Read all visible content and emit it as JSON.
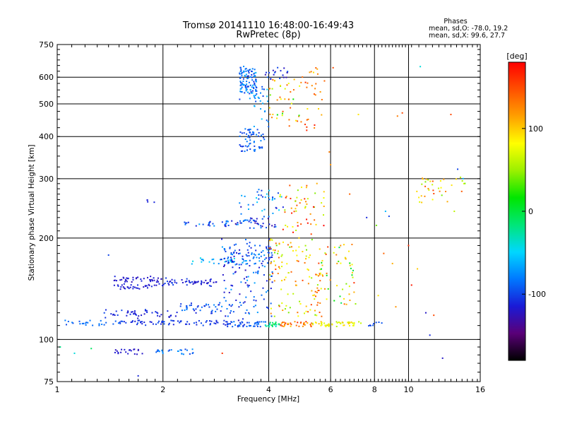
{
  "chart_data": {
    "type": "scatter",
    "title": "Tromsø 20141110 16:48:00-16:49:43",
    "subtitle": "RwPretec (8p)",
    "xlabel": "Frequency [MHz]",
    "ylabel": "Stationary phase Virtual Height [km]",
    "x_scale": "log",
    "y_scale": "log",
    "xlim": [
      1,
      16
    ],
    "ylim": [
      75,
      750
    ],
    "x_ticks": [
      1,
      2,
      4,
      6,
      8,
      10,
      16
    ],
    "y_ticks": [
      75,
      100,
      200,
      300,
      400,
      500,
      600,
      750
    ],
    "grid": true,
    "phase_stats": {
      "heading": "Phases",
      "o_mode": "mean, sd,O: -78.0, 19.2",
      "x_mode": "mean, sd,X:  99.6, 27.7"
    },
    "colorbar": {
      "label": "[deg]",
      "range": [
        -180,
        180
      ],
      "ticks": [
        -100,
        0,
        100
      ],
      "colors": [
        "#000000",
        "#5a0078",
        "#1a1ad6",
        "#0078ff",
        "#00d7ff",
        "#00e678",
        "#00e600",
        "#9bf000",
        "#ffff00",
        "#ffa000",
        "#ff5000",
        "#ff0000"
      ]
    },
    "traces": [
      {
        "x0": 1.05,
        "x1": 1.55,
        "y0": 112,
        "y1": 112,
        "n": 25,
        "phase": -90,
        "spread": 10
      },
      {
        "x0": 1.5,
        "x1": 3.1,
        "y0": 112,
        "y1": 112,
        "n": 70,
        "phase": -105,
        "spread": 10
      },
      {
        "x0": 3.0,
        "x1": 3.9,
        "y0": 111,
        "y1": 111,
        "n": 45,
        "phase": -95,
        "spread": 15
      },
      {
        "x0": 3.9,
        "x1": 4.3,
        "y0": 111,
        "y1": 111,
        "n": 20,
        "phase": -20,
        "spread": 25
      },
      {
        "x0": 4.3,
        "x1": 5.3,
        "y0": 111,
        "y1": 111,
        "n": 35,
        "phase": 130,
        "spread": 35
      },
      {
        "x0": 5.3,
        "x1": 7.4,
        "y0": 111,
        "y1": 111,
        "n": 45,
        "phase": 80,
        "spread": 25
      },
      {
        "x0": 7.7,
        "x1": 8.4,
        "y0": 111,
        "y1": 111,
        "n": 8,
        "phase": -100,
        "spread": 10
      },
      {
        "x0": 1.35,
        "x1": 2.2,
        "y0": 117,
        "y1": 121,
        "n": 45,
        "phase": -110,
        "spread": 12
      },
      {
        "x0": 2.2,
        "x1": 3.2,
        "y0": 121,
        "y1": 127,
        "n": 45,
        "phase": -95,
        "spread": 20
      },
      {
        "x0": 1.45,
        "x1": 2.0,
        "y0": 150,
        "y1": 152,
        "n": 40,
        "phase": -118,
        "spread": 8
      },
      {
        "x0": 1.45,
        "x1": 2.0,
        "y0": 143,
        "y1": 144,
        "n": 35,
        "phase": -115,
        "spread": 8
      },
      {
        "x0": 2.0,
        "x1": 2.9,
        "y0": 146,
        "y1": 150,
        "n": 50,
        "phase": -112,
        "spread": 12
      },
      {
        "x0": 2.3,
        "x1": 3.5,
        "y0": 170,
        "y1": 172,
        "n": 30,
        "phase": -60,
        "spread": 20
      },
      {
        "x0": 3.1,
        "x1": 4.1,
        "y0": 165,
        "y1": 185,
        "n": 40,
        "phase": -95,
        "spread": 25
      },
      {
        "x0": 2.9,
        "x1": 4.1,
        "y0": 113,
        "y1": 198,
        "n": 140,
        "phase": -95,
        "spread": 30
      },
      {
        "x0": 4.0,
        "x1": 5.7,
        "y0": 118,
        "y1": 198,
        "n": 120,
        "phase": 95,
        "spread": 60
      },
      {
        "x0": 5.5,
        "x1": 7.1,
        "y0": 125,
        "y1": 190,
        "n": 55,
        "phase": 70,
        "spread": 90
      },
      {
        "x0": 2.3,
        "x1": 3.3,
        "y0": 222,
        "y1": 220,
        "n": 30,
        "phase": -90,
        "spread": 25
      },
      {
        "x0": 3.2,
        "x1": 4.2,
        "y0": 215,
        "y1": 230,
        "n": 40,
        "phase": -105,
        "spread": 30
      },
      {
        "x0": 3.3,
        "x1": 4.4,
        "y0": 238,
        "y1": 275,
        "n": 35,
        "phase": -85,
        "spread": 40
      },
      {
        "x0": 4.3,
        "x1": 5.8,
        "y0": 205,
        "y1": 290,
        "n": 55,
        "phase": 110,
        "spread": 70
      },
      {
        "x0": 1.8,
        "x1": 1.9,
        "y0": 258,
        "y1": 258,
        "n": 4,
        "phase": -110,
        "spread": 5
      },
      {
        "x0": 3.3,
        "x1": 3.7,
        "y0": 520,
        "y1": 640,
        "n": 110,
        "phase": -85,
        "spread": 25
      },
      {
        "x0": 3.3,
        "x1": 3.9,
        "y0": 365,
        "y1": 420,
        "n": 60,
        "phase": -92,
        "spread": 15
      },
      {
        "x0": 3.6,
        "x1": 4.0,
        "y0": 430,
        "y1": 560,
        "n": 25,
        "phase": -75,
        "spread": 30
      },
      {
        "x0": 3.9,
        "x1": 4.6,
        "y0": 580,
        "y1": 640,
        "n": 20,
        "phase": -110,
        "spread": 20
      },
      {
        "x0": 4.0,
        "x1": 4.9,
        "y0": 420,
        "y1": 600,
        "n": 40,
        "phase": 80,
        "spread": 70
      },
      {
        "x0": 4.9,
        "x1": 5.8,
        "y0": 420,
        "y1": 640,
        "n": 30,
        "phase": 130,
        "spread": 40
      },
      {
        "x0": 10.5,
        "x1": 14.5,
        "y0": 255,
        "y1": 305,
        "n": 35,
        "phase": 100,
        "spread": 60
      },
      {
        "x0": 1.45,
        "x1": 1.75,
        "y0": 92,
        "y1": 92,
        "n": 20,
        "phase": -120,
        "spread": 6
      },
      {
        "x0": 1.9,
        "x1": 2.5,
        "y0": 92,
        "y1": 92,
        "n": 25,
        "phase": -85,
        "spread": 20
      }
    ],
    "scattered_points": [
      {
        "x": 1.02,
        "y": 95,
        "phase": -20
      },
      {
        "x": 1.12,
        "y": 91,
        "phase": -40
      },
      {
        "x": 1.25,
        "y": 94,
        "phase": -10
      },
      {
        "x": 1.4,
        "y": 178,
        "phase": -100
      },
      {
        "x": 1.7,
        "y": 78,
        "phase": -110
      },
      {
        "x": 2.95,
        "y": 91,
        "phase": 160
      },
      {
        "x": 6.0,
        "y": 330,
        "phase": 120
      },
      {
        "x": 5.95,
        "y": 360,
        "phase": 130
      },
      {
        "x": 6.1,
        "y": 640,
        "phase": 150
      },
      {
        "x": 6.8,
        "y": 270,
        "phase": 140
      },
      {
        "x": 7.2,
        "y": 465,
        "phase": 90
      },
      {
        "x": 7.6,
        "y": 230,
        "phase": -110
      },
      {
        "x": 8.1,
        "y": 218,
        "phase": 40
      },
      {
        "x": 8.6,
        "y": 240,
        "phase": -60
      },
      {
        "x": 8.8,
        "y": 232,
        "phase": -100
      },
      {
        "x": 9.3,
        "y": 460,
        "phase": 130
      },
      {
        "x": 9.6,
        "y": 470,
        "phase": 150
      },
      {
        "x": 9.0,
        "y": 168,
        "phase": 110
      },
      {
        "x": 8.5,
        "y": 180,
        "phase": 140
      },
      {
        "x": 8.2,
        "y": 135,
        "phase": 90
      },
      {
        "x": 9.2,
        "y": 125,
        "phase": 120
      },
      {
        "x": 10.0,
        "y": 190,
        "phase": 160
      },
      {
        "x": 10.2,
        "y": 145,
        "phase": 170
      },
      {
        "x": 10.6,
        "y": 162,
        "phase": 100
      },
      {
        "x": 10.8,
        "y": 645,
        "phase": -40
      },
      {
        "x": 11.2,
        "y": 120,
        "phase": -120
      },
      {
        "x": 11.5,
        "y": 103,
        "phase": -110
      },
      {
        "x": 11.8,
        "y": 118,
        "phase": 150
      },
      {
        "x": 12.5,
        "y": 88,
        "phase": -120
      },
      {
        "x": 13.2,
        "y": 465,
        "phase": 150
      },
      {
        "x": 13.5,
        "y": 240,
        "phase": 60
      },
      {
        "x": 10.9,
        "y": 255,
        "phase": 100
      },
      {
        "x": 13.8,
        "y": 320,
        "phase": -100
      },
      {
        "x": 14.3,
        "y": 300,
        "phase": -60
      }
    ]
  }
}
